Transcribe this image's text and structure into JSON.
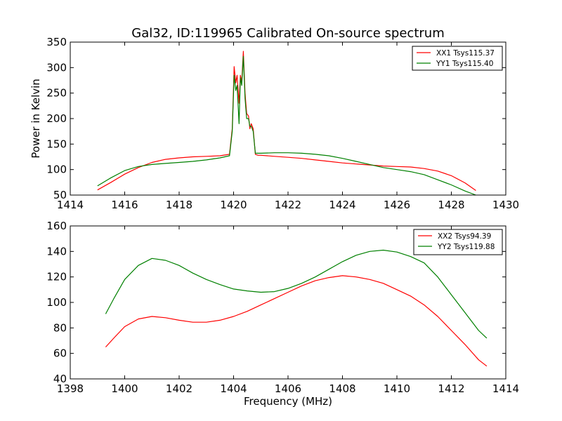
{
  "title": "Gal32, ID:119965 Calibrated On-source spectrum",
  "chart_data": [
    {
      "type": "line",
      "title": "Gal32, ID:119965 Calibrated On-source spectrum",
      "xlabel": "",
      "ylabel": "Power in Kelvin",
      "xlim": [
        1414,
        1430
      ],
      "ylim": [
        50,
        350
      ],
      "xticks": [
        "1414",
        "1416",
        "1418",
        "1420",
        "1422",
        "1424",
        "1426",
        "1428",
        "1430"
      ],
      "yticks": [
        "50",
        "100",
        "150",
        "200",
        "250",
        "300",
        "350"
      ],
      "grid": false,
      "legend_position": "top-right",
      "series": [
        {
          "name": "XX1 Tsys115.37",
          "color": "#ff0000",
          "x": [
            1415.0,
            1415.5,
            1416.0,
            1416.5,
            1417.0,
            1417.5,
            1418.0,
            1418.5,
            1419.0,
            1419.5,
            1419.85,
            1419.95,
            1420.02,
            1420.08,
            1420.13,
            1420.2,
            1420.25,
            1420.3,
            1420.36,
            1420.42,
            1420.48,
            1420.55,
            1420.6,
            1420.65,
            1420.72,
            1420.8,
            1420.9,
            1421.0,
            1421.5,
            1422.0,
            1422.5,
            1423.0,
            1423.5,
            1424.0,
            1424.5,
            1425.0,
            1425.5,
            1426.0,
            1426.5,
            1427.0,
            1427.5,
            1428.0,
            1428.5,
            1428.9
          ],
          "y": [
            60,
            75,
            91,
            104,
            114,
            120,
            123,
            125,
            126,
            127,
            130,
            180,
            302,
            270,
            285,
            230,
            285,
            272,
            332,
            250,
            210,
            205,
            180,
            190,
            180,
            130,
            128,
            128,
            126,
            124,
            122,
            119,
            116,
            113,
            111,
            109,
            107,
            106,
            105,
            102,
            97,
            88,
            74,
            59
          ]
        },
        {
          "name": "YY1 Tsys115.40",
          "color": "#008000",
          "x": [
            1415.0,
            1415.5,
            1416.0,
            1416.5,
            1417.0,
            1417.5,
            1418.0,
            1418.5,
            1419.0,
            1419.5,
            1419.85,
            1419.95,
            1420.02,
            1420.08,
            1420.13,
            1420.2,
            1420.25,
            1420.3,
            1420.36,
            1420.42,
            1420.48,
            1420.55,
            1420.6,
            1420.65,
            1420.72,
            1420.8,
            1420.9,
            1421.0,
            1421.5,
            1422.0,
            1422.5,
            1423.0,
            1423.5,
            1424.0,
            1424.5,
            1425.0,
            1425.5,
            1426.0,
            1426.5,
            1427.0,
            1427.5,
            1428.0,
            1428.5,
            1428.9
          ],
          "y": [
            68,
            84,
            98,
            106,
            110,
            112,
            114,
            116,
            119,
            123,
            127,
            175,
            285,
            255,
            265,
            190,
            280,
            265,
            322,
            240,
            200,
            200,
            185,
            185,
            175,
            132,
            132,
            132,
            133,
            133,
            132,
            130,
            127,
            122,
            116,
            110,
            104,
            100,
            96,
            90,
            80,
            70,
            58,
            50
          ]
        }
      ]
    },
    {
      "type": "line",
      "title": "",
      "xlabel": "Frequency (MHz)",
      "ylabel": "",
      "xlim": [
        1398,
        1414
      ],
      "ylim": [
        40,
        160
      ],
      "xticks": [
        "1398",
        "1400",
        "1402",
        "1404",
        "1406",
        "1408",
        "1410",
        "1412",
        "1414"
      ],
      "yticks": [
        "40",
        "60",
        "80",
        "100",
        "120",
        "140",
        "160"
      ],
      "grid": false,
      "legend_position": "top-right",
      "series": [
        {
          "name": "XX2 Tsys94.39",
          "color": "#ff0000",
          "x": [
            1399.3,
            1399.6,
            1400.0,
            1400.5,
            1401.0,
            1401.5,
            1402.0,
            1402.5,
            1403.0,
            1403.5,
            1404.0,
            1404.5,
            1405.0,
            1405.5,
            1406.0,
            1406.5,
            1407.0,
            1407.5,
            1408.0,
            1408.5,
            1409.0,
            1409.5,
            1410.0,
            1410.5,
            1411.0,
            1411.5,
            1412.0,
            1412.5,
            1413.0,
            1413.3
          ],
          "y": [
            65,
            72,
            81,
            87,
            89,
            88,
            86,
            84.5,
            84.5,
            86,
            89,
            93,
            98,
            103,
            108,
            113,
            117,
            119.5,
            121,
            120,
            118,
            115,
            110,
            105,
            98,
            89,
            78,
            67,
            55,
            50
          ]
        },
        {
          "name": "YY2 Tsys119.88",
          "color": "#008000",
          "x": [
            1399.3,
            1399.6,
            1400.0,
            1400.5,
            1401.0,
            1401.5,
            1402.0,
            1402.5,
            1403.0,
            1403.5,
            1404.0,
            1404.5,
            1405.0,
            1405.5,
            1406.0,
            1406.5,
            1407.0,
            1407.5,
            1408.0,
            1408.5,
            1409.0,
            1409.5,
            1410.0,
            1410.5,
            1411.0,
            1411.5,
            1412.0,
            1412.5,
            1413.0,
            1413.3
          ],
          "y": [
            91,
            103,
            118,
            129,
            134.5,
            133,
            129,
            123,
            118,
            114,
            110.5,
            109,
            108,
            108.5,
            111,
            115,
            120,
            126,
            132,
            137,
            140,
            141,
            139.5,
            136,
            131,
            120,
            106,
            92,
            78,
            72
          ]
        }
      ]
    }
  ]
}
